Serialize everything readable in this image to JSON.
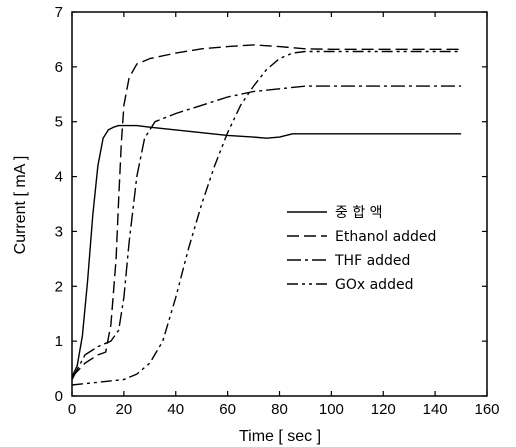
{
  "chart_data": {
    "type": "line",
    "title": "",
    "xlabel": "Time [ sec ]",
    "ylabel": "Current [ mA ]",
    "xlim": [
      0,
      160
    ],
    "ylim": [
      0,
      7
    ],
    "xticks": [
      0,
      20,
      40,
      60,
      80,
      100,
      120,
      140,
      160
    ],
    "yticks": [
      0,
      1,
      2,
      3,
      4,
      5,
      6,
      7
    ],
    "grid": false,
    "legend_position": "center-right",
    "series": [
      {
        "name": "중 합 액",
        "dash": "solid",
        "color": "#000000",
        "x": [
          0,
          2,
          4,
          6,
          8,
          10,
          12,
          14,
          16,
          18,
          20,
          25,
          30,
          40,
          50,
          60,
          70,
          75,
          80,
          85,
          90,
          100,
          120,
          150
        ],
        "y": [
          0.35,
          0.55,
          1.1,
          2.1,
          3.3,
          4.2,
          4.7,
          4.85,
          4.9,
          4.93,
          4.93,
          4.93,
          4.9,
          4.85,
          4.8,
          4.75,
          4.72,
          4.7,
          4.72,
          4.78,
          4.78,
          4.78,
          4.78,
          4.78
        ]
      },
      {
        "name": "Ethanol added",
        "dash": "long-dash",
        "color": "#000000",
        "x": [
          0,
          5,
          10,
          13,
          15,
          17,
          18,
          19,
          20,
          22,
          25,
          30,
          40,
          50,
          60,
          70,
          80,
          90,
          100,
          120,
          150
        ],
        "y": [
          0.35,
          0.6,
          0.75,
          0.8,
          1.3,
          2.5,
          3.6,
          4.6,
          5.3,
          5.8,
          6.05,
          6.15,
          6.25,
          6.33,
          6.37,
          6.4,
          6.37,
          6.33,
          6.32,
          6.32,
          6.32
        ]
      },
      {
        "name": "THF added",
        "dash": "dash-dot",
        "color": "#000000",
        "x": [
          0,
          5,
          10,
          15,
          18,
          20,
          22,
          25,
          28,
          32,
          40,
          50,
          60,
          70,
          80,
          90,
          100,
          120,
          150
        ],
        "y": [
          0.3,
          0.75,
          0.9,
          1.0,
          1.2,
          1.8,
          2.8,
          4.0,
          4.7,
          5.0,
          5.15,
          5.3,
          5.45,
          5.55,
          5.6,
          5.65,
          5.65,
          5.65,
          5.65
        ]
      },
      {
        "name": "GOx added",
        "dash": "dash-dot-dot",
        "color": "#000000",
        "x": [
          0,
          10,
          20,
          25,
          30,
          35,
          40,
          45,
          50,
          55,
          60,
          65,
          70,
          75,
          80,
          85,
          90,
          100,
          120,
          150
        ],
        "y": [
          0.2,
          0.25,
          0.3,
          0.4,
          0.6,
          1.0,
          1.8,
          2.7,
          3.5,
          4.2,
          4.8,
          5.3,
          5.65,
          5.95,
          6.15,
          6.25,
          6.28,
          6.28,
          6.28,
          6.28
        ]
      }
    ]
  }
}
